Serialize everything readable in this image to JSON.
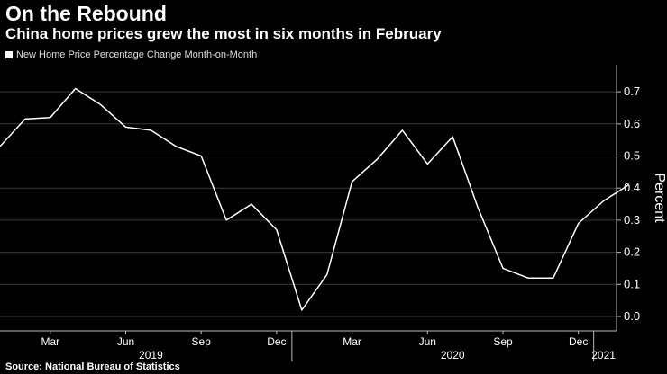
{
  "header": {
    "title": "On the Rebound",
    "subtitle": "China home prices grew the most in six months in February"
  },
  "source": "Source: National Bureau of Statistics",
  "colors": {
    "background": "#000000",
    "line": "#ffffff",
    "grid": "#3a3a3a",
    "text": "#ffffff"
  },
  "chart_data": {
    "type": "line",
    "title": "On the Rebound",
    "subtitle": "China home prices grew the most in six months in February",
    "ylabel": "Percent",
    "ylim": [
      0.0,
      0.75
    ],
    "yticks": [
      0.0,
      0.1,
      0.2,
      0.3,
      0.4,
      0.5,
      0.6,
      0.7
    ],
    "ytick_labels": [
      "0.0",
      "0.1",
      "0.2",
      "0.3",
      "0.4",
      "0.5",
      "0.6",
      "0.7"
    ],
    "xlim": [
      "2019-01",
      "2021-02"
    ],
    "xticks": [
      "2019-03",
      "2019-06",
      "2019-09",
      "2019-12",
      "2020-03",
      "2020-06",
      "2020-09",
      "2020-12"
    ],
    "xtick_labels": [
      "Mar",
      "Jun",
      "Sep",
      "Dec",
      "Mar",
      "Jun",
      "Sep",
      "Dec"
    ],
    "year_labels": [
      {
        "label": "2019",
        "at": "2019-07"
      },
      {
        "label": "2020",
        "at": "2020-07"
      },
      {
        "label": "2021",
        "at": "2021-01"
      }
    ],
    "year_dividers": [
      "2019-12",
      "2020-12"
    ],
    "grid": true,
    "legend": "top-left",
    "y_axis_side": "right",
    "series": [
      {
        "name": "New Home Price Percentage Change Month-on-Month",
        "color": "#ffffff",
        "x": [
          "2019-01",
          "2019-02",
          "2019-03",
          "2019-04",
          "2019-05",
          "2019-06",
          "2019-07",
          "2019-08",
          "2019-09",
          "2019-10",
          "2019-11",
          "2019-12",
          "2020-01",
          "2020-02",
          "2020-03",
          "2020-04",
          "2020-05",
          "2020-06",
          "2020-07",
          "2020-08",
          "2020-09",
          "2020-10",
          "2020-11",
          "2020-12",
          "2021-01",
          "2021-02"
        ],
        "values": [
          0.53,
          0.615,
          0.62,
          0.71,
          0.66,
          0.59,
          0.58,
          0.53,
          0.5,
          0.3,
          0.35,
          0.27,
          0.02,
          0.13,
          0.42,
          0.49,
          0.58,
          0.475,
          0.56,
          0.34,
          0.15,
          0.12,
          0.12,
          0.29,
          0.36,
          0.41
        ]
      }
    ]
  }
}
